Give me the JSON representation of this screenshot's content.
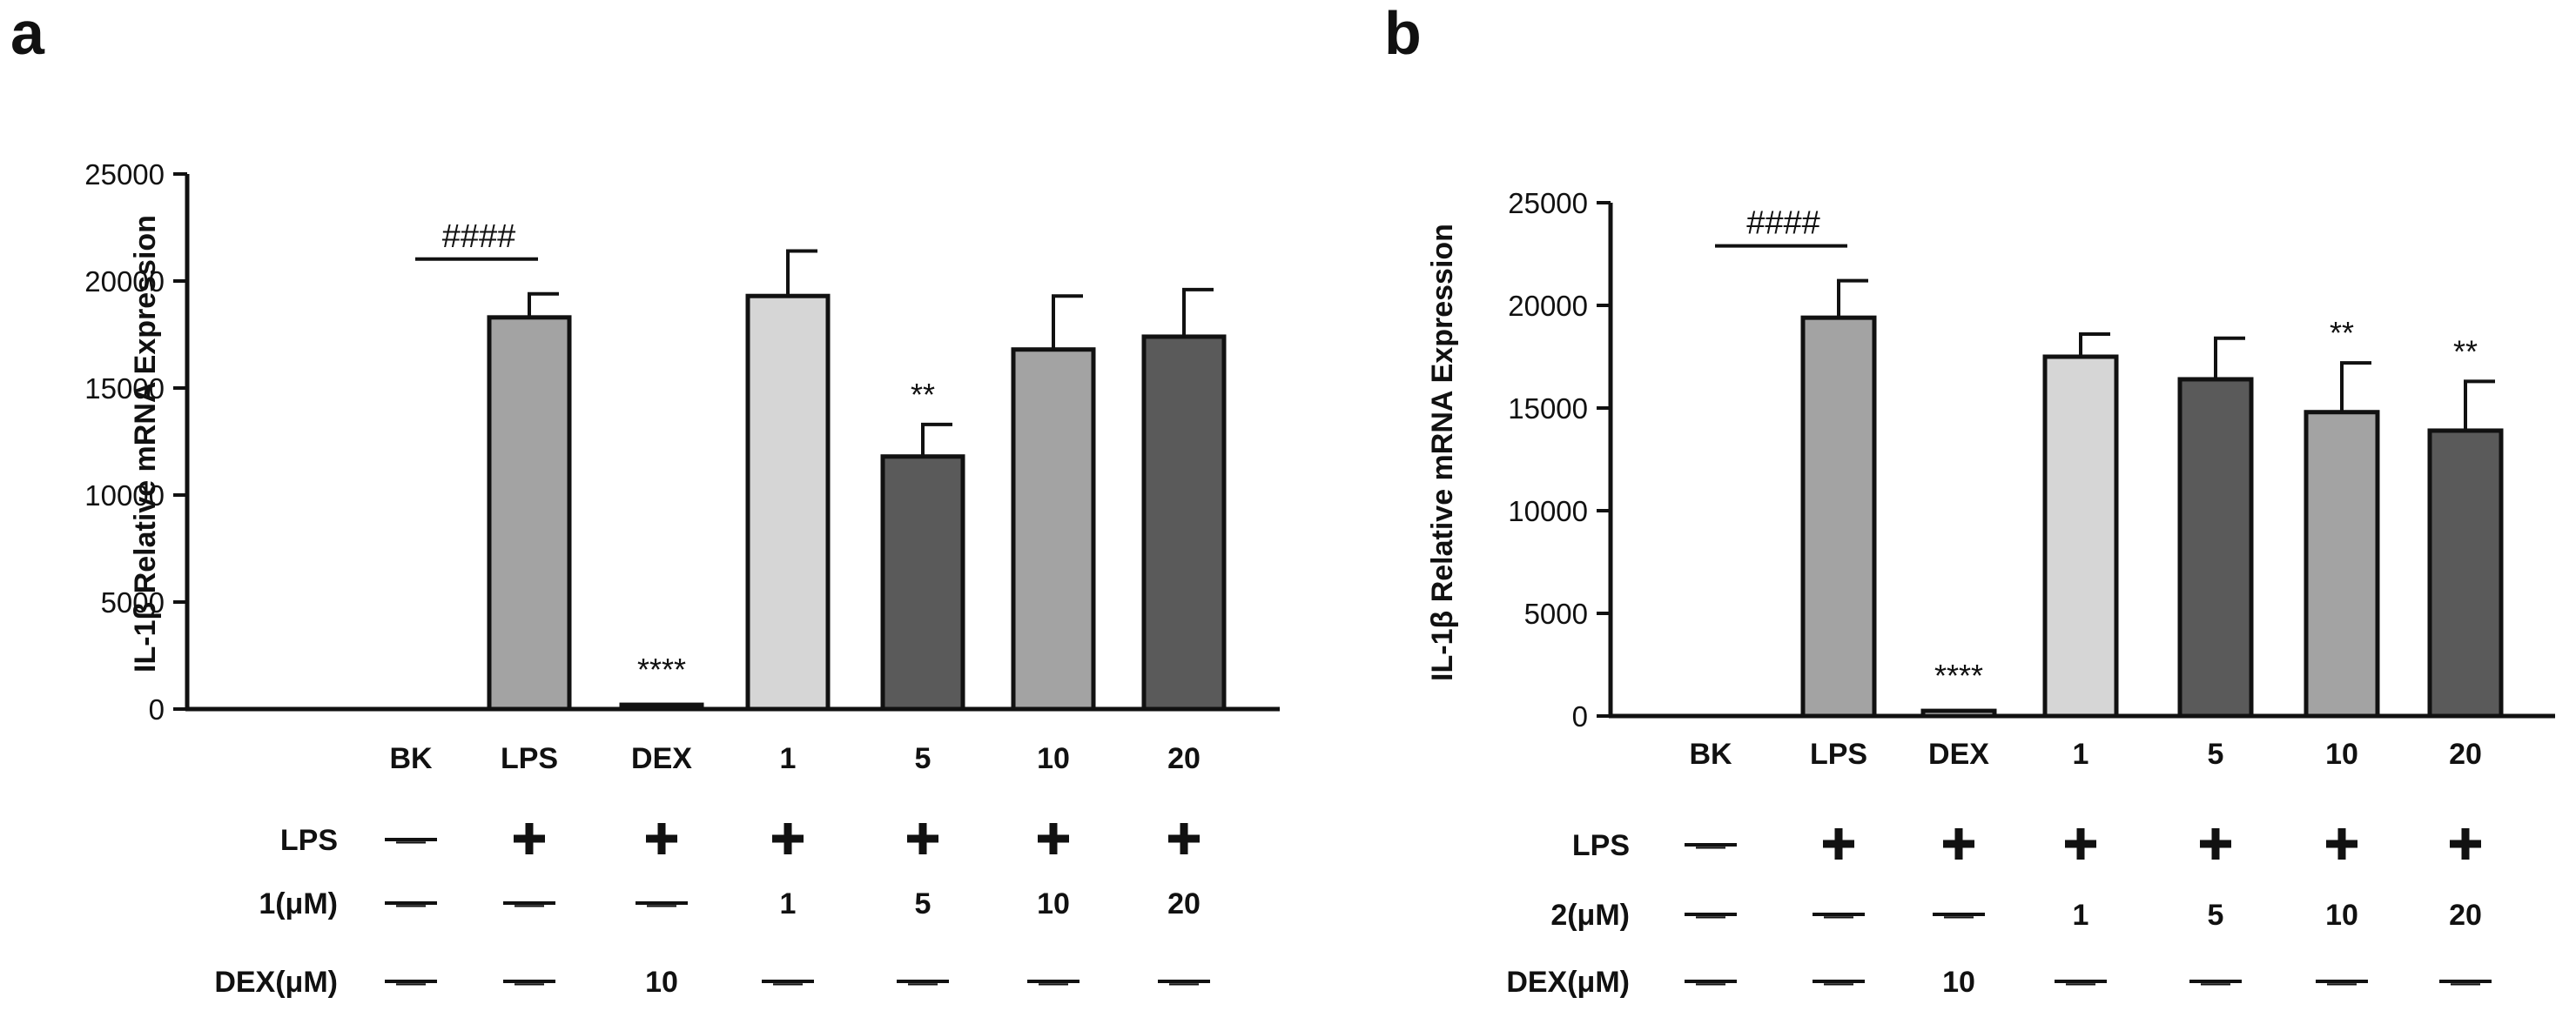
{
  "chart_data": [
    {
      "panel_label": "a",
      "type": "bar",
      "title": "",
      "xlabel": "",
      "ylabel": "IL-1β Relative mRNA Expression",
      "ylim": [
        0,
        25000
      ],
      "yticks": [
        0,
        5000,
        10000,
        15000,
        20000,
        25000
      ],
      "ytick_labels": [
        "0",
        "5000",
        "10000",
        "15000",
        "20000",
        "25000"
      ],
      "categories": [
        "BK",
        "LPS",
        "DEX",
        "1",
        "5",
        "10",
        "20"
      ],
      "values": [
        0,
        18300,
        200,
        19300,
        11800,
        16800,
        17400
      ],
      "errors": [
        0,
        1100,
        0,
        2100,
        1500,
        2500,
        2200
      ],
      "bar_colors": [
        "#ffffff",
        "#a3a3a3",
        "#ffffff",
        "#d6d6d6",
        "#5a5a5a",
        "#a3a3a3",
        "#5a5a5a"
      ],
      "annotations": [
        "",
        "",
        "****",
        "",
        "**",
        "",
        ""
      ],
      "significance_bracket": {
        "label": "####",
        "from": "BK",
        "to": "LPS"
      },
      "treatment_table": [
        {
          "label": "LPS",
          "cells": [
            "—",
            "+",
            "+",
            "+",
            "+",
            "+",
            "+"
          ]
        },
        {
          "label": "1(μM)",
          "cells": [
            "—",
            "—",
            "—",
            "1",
            "5",
            "10",
            "20"
          ]
        },
        {
          "label": "DEX(μM)",
          "cells": [
            "—",
            "—",
            "10",
            "—",
            "—",
            "—",
            "—"
          ]
        }
      ]
    },
    {
      "panel_label": "b",
      "type": "bar",
      "title": "",
      "xlabel": "",
      "ylabel": "IL-1β Relative mRNA Expression",
      "ylim": [
        0,
        25000
      ],
      "yticks": [
        0,
        5000,
        10000,
        15000,
        20000,
        25000
      ],
      "ytick_labels": [
        "0",
        "5000",
        "10000",
        "15000",
        "20000",
        "25000"
      ],
      "categories": [
        "BK",
        "LPS",
        "DEX",
        "1",
        "5",
        "10",
        "20"
      ],
      "values": [
        0,
        19400,
        250,
        17500,
        16400,
        14800,
        13900
      ],
      "errors": [
        0,
        1800,
        0,
        1100,
        2000,
        2400,
        2400
      ],
      "bar_colors": [
        "#ffffff",
        "#a3a3a3",
        "#ffffff",
        "#d6d6d6",
        "#5a5a5a",
        "#a3a3a3",
        "#5a5a5a"
      ],
      "annotations": [
        "",
        "",
        "****",
        "",
        "",
        "**",
        "**"
      ],
      "significance_bracket": {
        "label": "####",
        "from": "BK",
        "to": "LPS"
      },
      "treatment_table": [
        {
          "label": "LPS",
          "cells": [
            "—",
            "+",
            "+",
            "+",
            "+",
            "+",
            "+"
          ]
        },
        {
          "label": "2(μM)",
          "cells": [
            "—",
            "—",
            "—",
            "1",
            "5",
            "10",
            "20"
          ]
        },
        {
          "label": "DEX(μM)",
          "cells": [
            "—",
            "—",
            "10",
            "—",
            "—",
            "—",
            "—"
          ]
        }
      ]
    }
  ]
}
